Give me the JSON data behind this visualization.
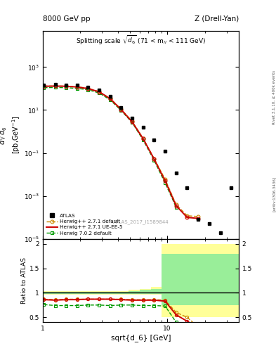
{
  "title_left": "8000 GeV pp",
  "title_right": "Z (Drell-Yan)",
  "main_title": "Splitting scale $\\sqrt{d_6}$ (71 < m$_{ll}$ < 111 GeV)",
  "ylabel_main": "$\\frac{d\\sigma}{d\\mathrm{sqrt}(d_6)}$ [pb,GeV$^{-1}$]",
  "ylabel_ratio": "Ratio to ATLAS",
  "xlabel": "sqrt{d_6} [GeV]",
  "watermark": "ATLAS_2017_I1589844",
  "rivet_label": "Rivet 3.1.10, ≥ 400k events",
  "arxiv_label": "[arXiv:1306.3436]",
  "atlas_x": [
    1.02,
    1.26,
    1.54,
    1.89,
    2.31,
    2.84,
    3.47,
    4.26,
    5.22,
    6.4,
    7.84,
    9.61,
    11.78,
    14.44,
    17.7,
    21.7,
    26.6,
    32.6
  ],
  "atlas_y": [
    145,
    155,
    150,
    140,
    120,
    85,
    42,
    13.5,
    4.2,
    1.55,
    0.42,
    0.12,
    0.012,
    0.0025,
    8e-05,
    5e-05,
    2e-05,
    0.0025
  ],
  "hw271_x": [
    1.02,
    1.26,
    1.54,
    1.89,
    2.31,
    2.84,
    3.47,
    4.26,
    5.22,
    6.4,
    7.84,
    9.61,
    11.78,
    14.44,
    17.7
  ],
  "hw271_y": [
    130,
    132,
    130,
    120,
    102,
    72,
    35,
    11,
    3.0,
    0.48,
    0.055,
    0.006,
    0.0004,
    0.00012,
    0.00011
  ],
  "hw271ue_x": [
    1.02,
    1.26,
    1.54,
    1.89,
    2.31,
    2.84,
    3.47,
    4.26,
    5.22,
    6.4,
    7.84,
    9.61,
    11.78,
    14.44,
    17.7
  ],
  "hw271ue_y": [
    128,
    130,
    128,
    118,
    100,
    70,
    34,
    10.5,
    2.8,
    0.46,
    0.052,
    0.005,
    0.00035,
    0.0001,
    9e-05
  ],
  "hw702_x": [
    1.02,
    1.26,
    1.54,
    1.89,
    2.31,
    2.84,
    3.47,
    4.26,
    5.22,
    6.4,
    7.84,
    9.61,
    11.78
  ],
  "hw702_y": [
    110,
    112,
    110,
    102,
    88,
    62,
    30,
    9.5,
    2.6,
    0.4,
    0.045,
    0.004,
    0.0003
  ],
  "ratio_hw271_x": [
    1.02,
    1.26,
    1.54,
    1.89,
    2.31,
    2.84,
    3.47,
    4.26,
    5.22,
    6.4,
    7.84,
    9.61,
    11.78,
    14.44,
    17.7
  ],
  "ratio_hw271_y": [
    0.87,
    0.86,
    0.87,
    0.87,
    0.87,
    0.87,
    0.87,
    0.87,
    0.86,
    0.86,
    0.86,
    0.85,
    0.6,
    0.5,
    0.3
  ],
  "ratio_hw271ue_x": [
    1.02,
    1.26,
    1.54,
    1.89,
    2.31,
    2.84,
    3.47,
    4.26,
    5.22,
    6.4,
    7.84,
    9.61,
    11.78,
    14.44,
    17.7
  ],
  "ratio_hw271ue_y": [
    0.86,
    0.85,
    0.86,
    0.86,
    0.87,
    0.87,
    0.87,
    0.86,
    0.85,
    0.85,
    0.85,
    0.83,
    0.55,
    0.42,
    0.28
  ],
  "ratio_hw702_x": [
    1.02,
    1.26,
    1.54,
    1.89,
    2.31,
    2.84,
    3.47,
    4.26,
    5.22,
    6.4,
    7.84,
    9.61,
    11.78
  ],
  "ratio_hw702_y": [
    0.76,
    0.74,
    0.74,
    0.74,
    0.75,
    0.75,
    0.74,
    0.75,
    0.75,
    0.74,
    0.74,
    0.73,
    0.4
  ],
  "band_x_edges": [
    1.0,
    1.15,
    1.45,
    1.78,
    2.18,
    2.67,
    3.27,
    4.01,
    4.91,
    6.02,
    7.38,
    9.04,
    11.08,
    37.5
  ],
  "band_yellow_lo": [
    0.96,
    0.96,
    0.96,
    0.96,
    0.96,
    0.96,
    0.96,
    0.96,
    0.96,
    0.96,
    0.96,
    0.5,
    0.5
  ],
  "band_yellow_hi": [
    1.04,
    1.04,
    1.04,
    1.04,
    1.04,
    1.04,
    1.04,
    1.04,
    1.06,
    1.08,
    1.12,
    2.0,
    2.0
  ],
  "band_green_lo": [
    0.975,
    0.975,
    0.975,
    0.975,
    0.975,
    0.975,
    0.975,
    0.975,
    0.975,
    0.975,
    0.975,
    0.75,
    0.75
  ],
  "band_green_hi": [
    1.025,
    1.025,
    1.025,
    1.025,
    1.025,
    1.025,
    1.025,
    1.025,
    1.04,
    1.06,
    1.08,
    1.8,
    1.8
  ],
  "color_atlas": "#000000",
  "color_hw271": "#cc8800",
  "color_hw271ue": "#cc0000",
  "color_hw702": "#009900",
  "color_yellow": "#ffff99",
  "color_green": "#99ee99",
  "xlim": [
    1.0,
    37.5
  ],
  "ylim_main": [
    1e-05,
    50000.0
  ],
  "ylim_ratio": [
    0.4,
    2.1
  ]
}
